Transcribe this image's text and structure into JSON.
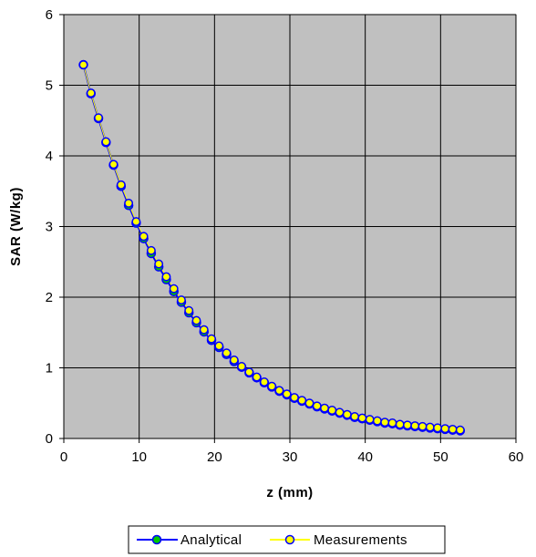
{
  "chart_data": {
    "type": "line",
    "xlabel": "z (mm)",
    "ylabel": "SAR (W/kg)",
    "xlim": [
      0,
      60
    ],
    "ylim": [
      0,
      6
    ],
    "x_ticks": [
      "0",
      "10",
      "20",
      "30",
      "40",
      "50",
      "60"
    ],
    "y_ticks": [
      "0",
      "1",
      "2",
      "3",
      "4",
      "5",
      "6"
    ],
    "grid": true,
    "plot_background": "#c0c0c0",
    "legend_position": "bottom",
    "x": [
      2.6,
      3.6,
      4.6,
      5.6,
      6.6,
      7.6,
      8.6,
      9.6,
      10.6,
      11.6,
      12.6,
      13.6,
      14.6,
      15.6,
      16.6,
      17.6,
      18.6,
      19.6,
      20.6,
      21.6,
      22.6,
      23.6,
      24.6,
      25.6,
      26.6,
      27.6,
      28.6,
      29.6,
      30.6,
      31.6,
      32.6,
      33.6,
      34.6,
      35.6,
      36.6,
      37.6,
      38.6,
      39.6,
      40.6,
      41.6,
      42.6,
      43.6,
      44.6,
      45.6,
      46.6,
      47.6,
      48.6,
      49.6,
      50.6,
      51.6,
      52.6
    ],
    "series": [
      {
        "name": "Analytical",
        "color": "#0000ff",
        "marker_fill": "#00c800",
        "values": [
          5.29,
          4.88,
          4.53,
          4.19,
          3.87,
          3.57,
          3.3,
          3.05,
          2.83,
          2.62,
          2.43,
          2.25,
          2.08,
          1.93,
          1.78,
          1.64,
          1.51,
          1.39,
          1.29,
          1.19,
          1.09,
          1.01,
          0.93,
          0.86,
          0.79,
          0.73,
          0.67,
          0.62,
          0.57,
          0.53,
          0.49,
          0.45,
          0.42,
          0.39,
          0.36,
          0.33,
          0.3,
          0.28,
          0.26,
          0.24,
          0.22,
          0.21,
          0.19,
          0.18,
          0.17,
          0.16,
          0.15,
          0.14,
          0.13,
          0.12,
          0.11
        ]
      },
      {
        "name": "Measurements",
        "color": "#ffff00",
        "marker_fill": "#ffff00",
        "values": [
          5.29,
          4.89,
          4.54,
          4.2,
          3.88,
          3.59,
          3.33,
          3.07,
          2.86,
          2.66,
          2.47,
          2.29,
          2.12,
          1.96,
          1.81,
          1.67,
          1.54,
          1.41,
          1.31,
          1.21,
          1.11,
          1.02,
          0.94,
          0.87,
          0.8,
          0.74,
          0.68,
          0.63,
          0.58,
          0.54,
          0.5,
          0.46,
          0.43,
          0.4,
          0.37,
          0.34,
          0.31,
          0.29,
          0.27,
          0.25,
          0.23,
          0.22,
          0.2,
          0.19,
          0.18,
          0.17,
          0.16,
          0.15,
          0.14,
          0.13,
          0.12
        ]
      }
    ]
  }
}
